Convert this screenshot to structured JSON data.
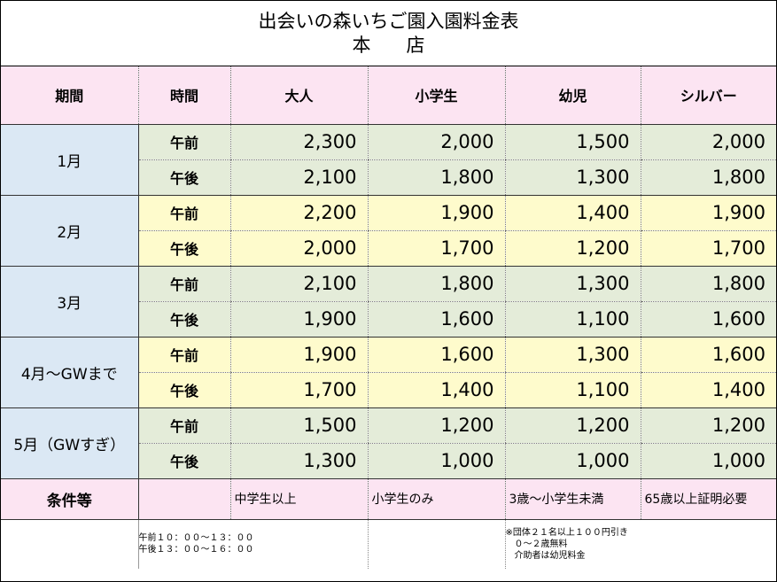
{
  "title": {
    "line1": "出会いの森いちご園入園料金表",
    "line2": "本店"
  },
  "headers": [
    "期間",
    "時間",
    "大人",
    "小学生",
    "幼児",
    "シルバー"
  ],
  "periods": [
    {
      "label": "1月",
      "color": "#e4ecd9",
      "rows": [
        {
          "time": "午前",
          "prices": [
            "2,300",
            "2,000",
            "1,500",
            "2,000"
          ]
        },
        {
          "time": "午後",
          "prices": [
            "2,100",
            "1,800",
            "1,300",
            "1,800"
          ]
        }
      ]
    },
    {
      "label": "2月",
      "color": "#fefbcc",
      "rows": [
        {
          "time": "午前",
          "prices": [
            "2,200",
            "1,900",
            "1,400",
            "1,900"
          ]
        },
        {
          "time": "午後",
          "prices": [
            "2,000",
            "1,700",
            "1,200",
            "1,700"
          ]
        }
      ]
    },
    {
      "label": "3月",
      "color": "#e4ecd9",
      "rows": [
        {
          "time": "午前",
          "prices": [
            "2,100",
            "1,800",
            "1,300",
            "1,800"
          ]
        },
        {
          "time": "午後",
          "prices": [
            "1,900",
            "1,600",
            "1,100",
            "1,600"
          ]
        }
      ]
    },
    {
      "label": "4月～GWまで",
      "color": "#fefbcc",
      "rows": [
        {
          "time": "午前",
          "prices": [
            "1,900",
            "1,600",
            "1,300",
            "1,600"
          ]
        },
        {
          "time": "午後",
          "prices": [
            "1,700",
            "1,400",
            "1,100",
            "1,400"
          ]
        }
      ]
    },
    {
      "label": "5月（GWすぎ）",
      "color": "#e4ecd9",
      "rows": [
        {
          "time": "午前",
          "prices": [
            "1,500",
            "1,200",
            "1,200",
            "1,200"
          ]
        },
        {
          "time": "午後",
          "prices": [
            "1,300",
            "1,000",
            "1,000",
            "1,000"
          ]
        }
      ]
    }
  ],
  "conditions": {
    "label": "条件等",
    "adult": "中学生以上",
    "elementary": "小学生のみ",
    "infant": "3歳～小学生未満",
    "silver": "65歳以上証明必要"
  },
  "footnotes": {
    "hours": [
      "午前１０：００～１３：００",
      "午後１３：００～１６：００"
    ],
    "notes": [
      "※団体２１名以上１００円引き",
      "　０～２歳無料",
      "　介助者は幼児料金"
    ]
  },
  "colors": {
    "header_bg": "#fce4f2",
    "period_bg": "#dbe8f4",
    "green_row": "#e4ecd9",
    "yellow_row": "#fefbcc"
  }
}
